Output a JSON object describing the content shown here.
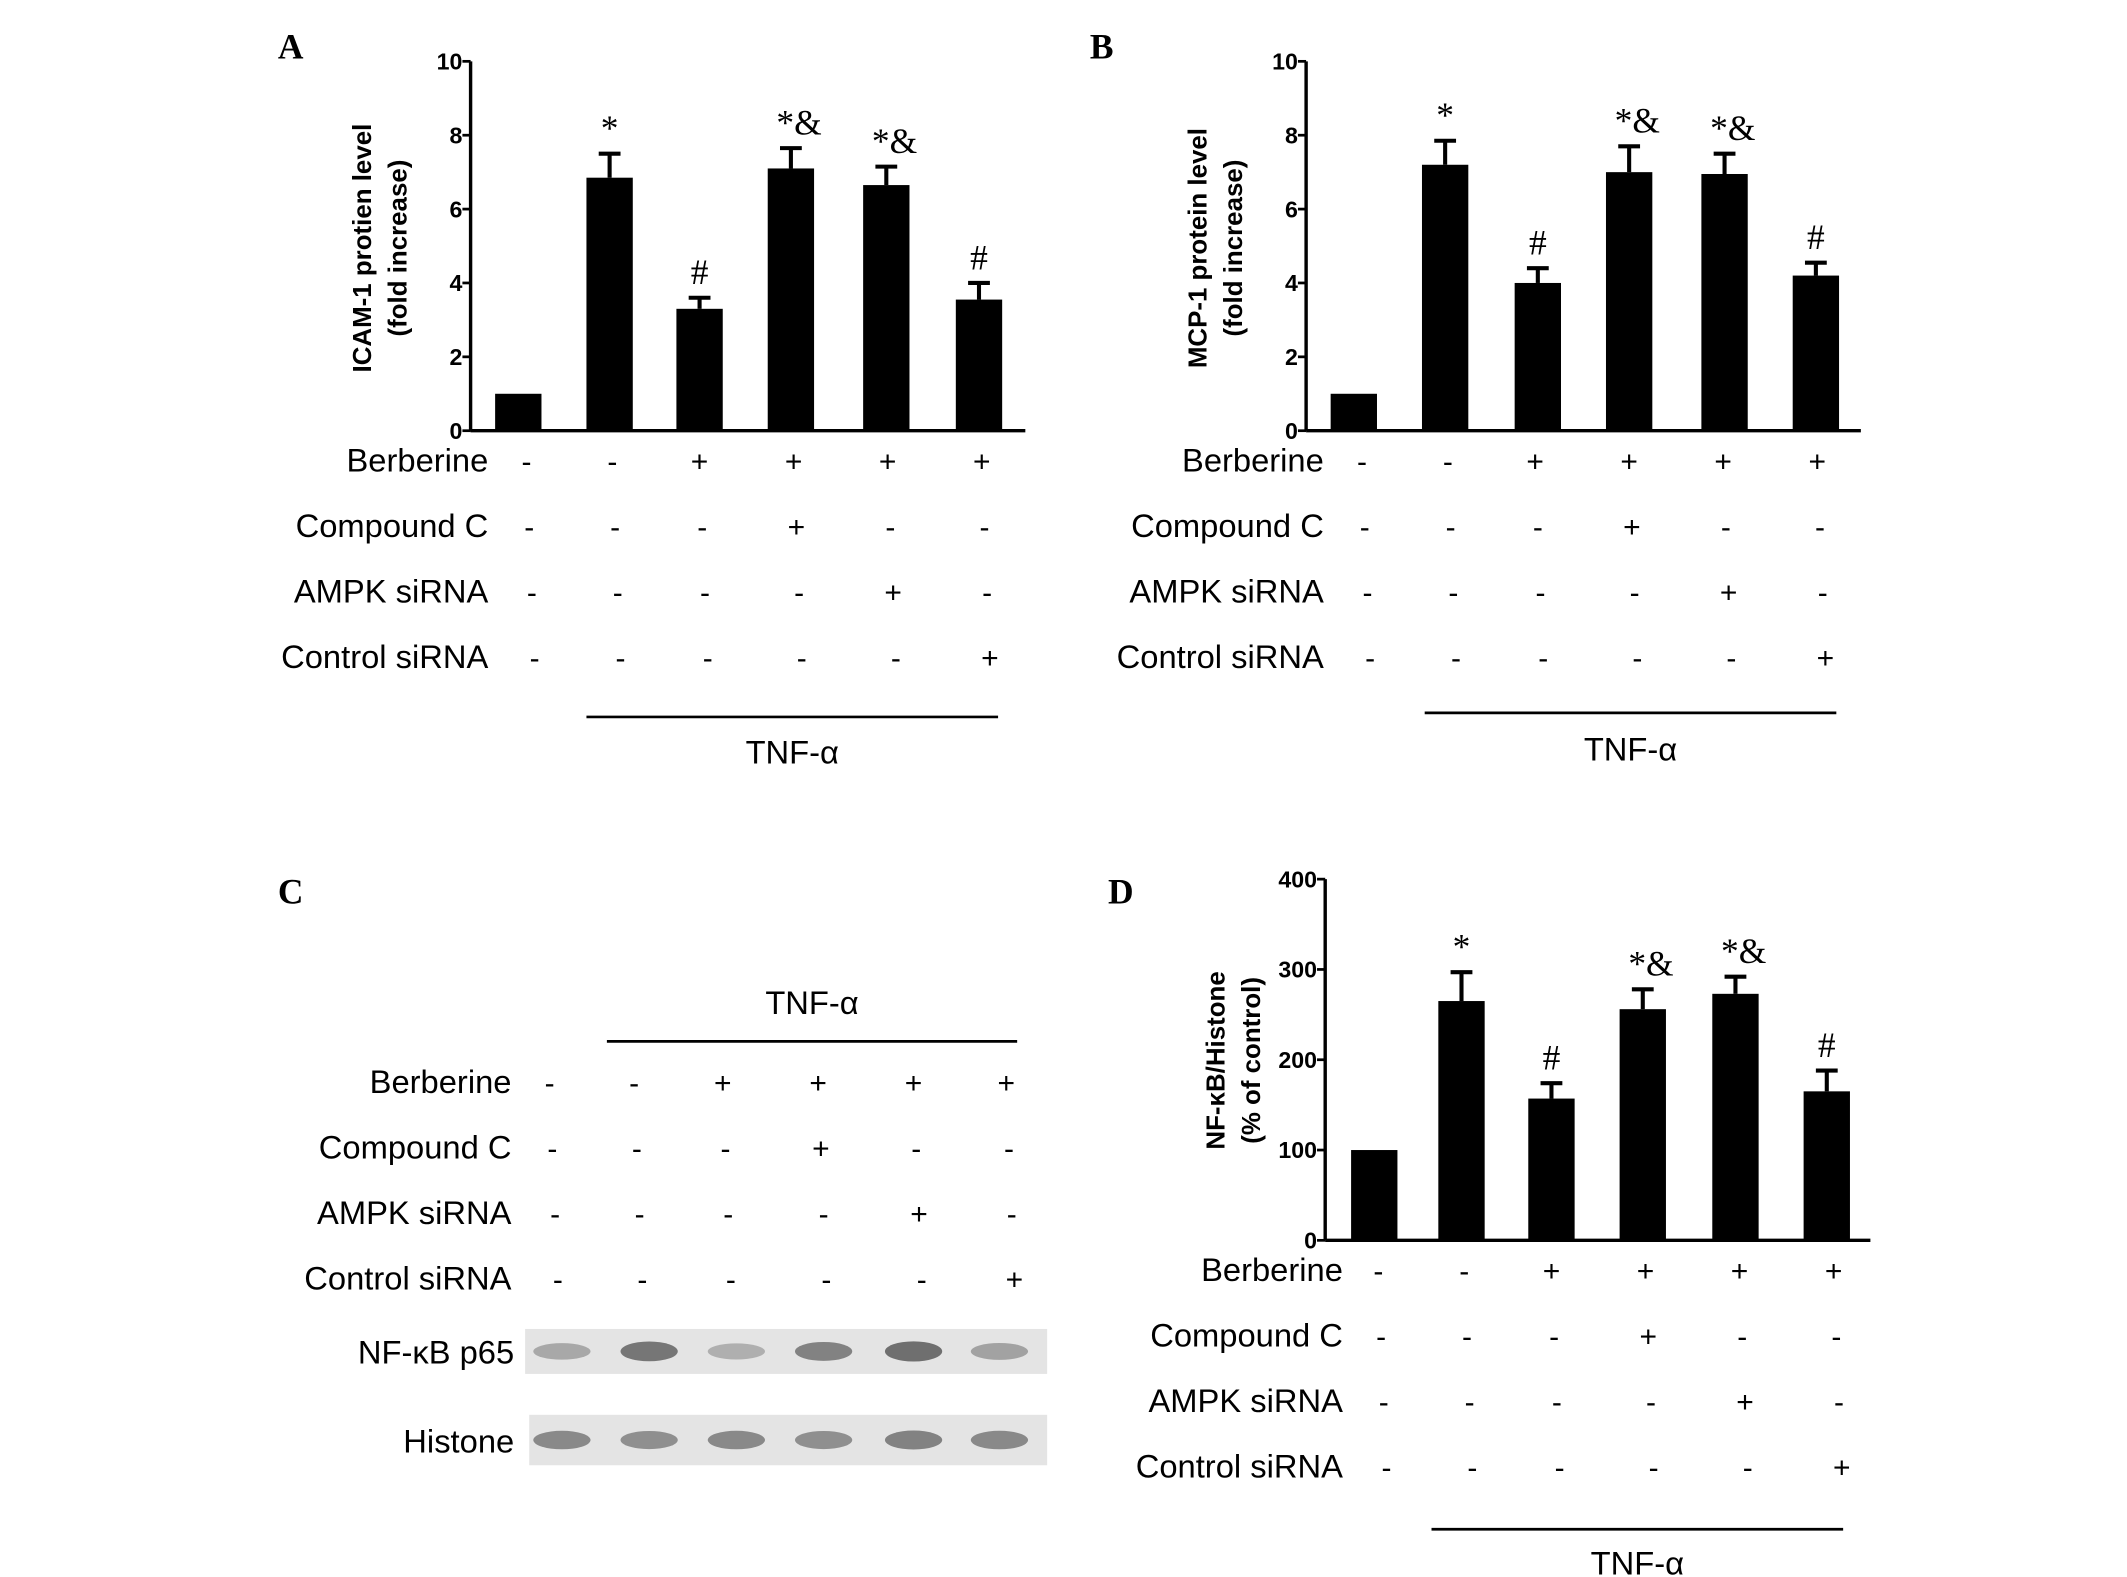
{
  "treatments": [
    {
      "label": "Berberine",
      "values": [
        "-",
        "-",
        "+",
        "+",
        "+",
        "+"
      ]
    },
    {
      "label": "Compound C",
      "values": [
        "-",
        "-",
        "-",
        "+",
        "-",
        "-"
      ]
    },
    {
      "label": "AMPK siRNA",
      "values": [
        "-",
        "-",
        "-",
        "-",
        "+",
        "-"
      ]
    },
    {
      "label": "Control siRNA",
      "values": [
        "-",
        "-",
        "-",
        "-",
        "-",
        "+"
      ]
    }
  ],
  "tnf_label": "TNF-α",
  "chart_data": [
    {
      "panel": "A",
      "type": "bar",
      "ylabel": [
        "ICAM-1 protien level",
        "(fold increase)"
      ],
      "ylim": [
        0,
        10
      ],
      "yticks": [
        "0",
        "2",
        "4",
        "6",
        "8",
        "10"
      ],
      "values": [
        1.0,
        6.85,
        3.3,
        7.1,
        6.65,
        3.55
      ],
      "errors": [
        0,
        0.65,
        0.3,
        0.55,
        0.5,
        0.45
      ],
      "annotations": [
        "",
        "*",
        "#",
        "*&",
        "*&",
        "#"
      ]
    },
    {
      "panel": "B",
      "type": "bar",
      "ylabel": [
        "MCP-1 protein level",
        "(fold increase)"
      ],
      "ylim": [
        0,
        10
      ],
      "yticks": [
        "0",
        "2",
        "4",
        "6",
        "8",
        "10"
      ],
      "values": [
        1.0,
        7.2,
        4.0,
        7.0,
        6.95,
        4.2
      ],
      "errors": [
        0,
        0.65,
        0.4,
        0.7,
        0.55,
        0.35
      ],
      "annotations": [
        "",
        "*",
        "#",
        "*&",
        "*&",
        "#"
      ]
    },
    {
      "panel": "D",
      "type": "bar",
      "ylabel": [
        "NF-κB/Histone",
        "(% of control)"
      ],
      "ylim": [
        0,
        400
      ],
      "yticks": [
        "0",
        "100",
        "200",
        "300",
        "400"
      ],
      "values": [
        100,
        265,
        157,
        256,
        273,
        165
      ],
      "errors": [
        0,
        32,
        17,
        22,
        19,
        23
      ],
      "annotations": [
        "",
        "*",
        "#",
        "*&",
        "*&",
        "#"
      ]
    }
  ],
  "blot": {
    "panel": "C",
    "rows": [
      {
        "label": "NF-κB p65",
        "intensity": [
          0.35,
          0.75,
          0.3,
          0.65,
          0.8,
          0.4
        ]
      },
      {
        "label": "Histone",
        "intensity": [
          0.6,
          0.55,
          0.6,
          0.55,
          0.65,
          0.6
        ]
      }
    ]
  }
}
